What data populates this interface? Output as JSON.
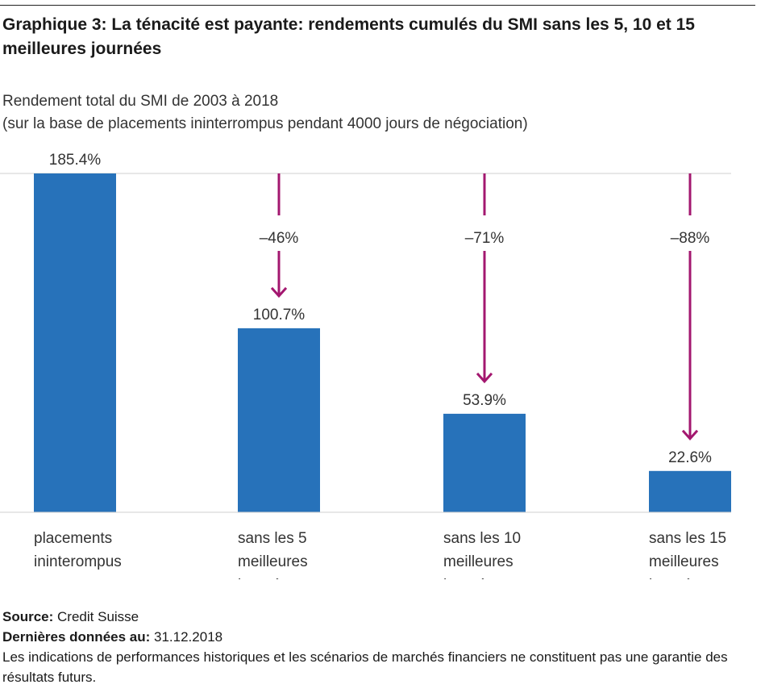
{
  "header": {
    "title": "Graphique 3: La ténacité est payante: rendements cumulés du SMI sans les 5, 10 et 15 meilleures journées",
    "subtitle_line1": "Rendement total du SMI de 2003 à 2018",
    "subtitle_line2": "(sur la base de placements ininterrompus pendant 4000 jours de négociation)"
  },
  "chart_data": {
    "type": "bar",
    "categories": [
      [
        "placements",
        "ininterompus"
      ],
      [
        "sans les 5",
        "meilleures",
        "journées"
      ],
      [
        "sans les 10",
        "meilleures",
        "journées"
      ],
      [
        "sans les 15",
        "meilleures",
        "journées"
      ]
    ],
    "values": [
      185.4,
      100.7,
      53.9,
      22.6
    ],
    "value_labels": [
      "185.4%",
      "100.7%",
      "53.9%",
      "22.6%"
    ],
    "reductions": [
      null,
      "–46%",
      "–71%",
      "–88%"
    ],
    "ylim": [
      0,
      185.4
    ],
    "grid": false,
    "bar_color": "#2772ba",
    "arrow_color": "#a3176f"
  },
  "footer": {
    "source_label": "Source:",
    "source_value": "Credit Suisse",
    "date_label": "Dernières données au:",
    "date_value": "31.12.2018",
    "disclaimer": "Les indications de performances historiques et les scénarios de marchés financiers ne constituent pas une garantie des résultats futurs."
  }
}
